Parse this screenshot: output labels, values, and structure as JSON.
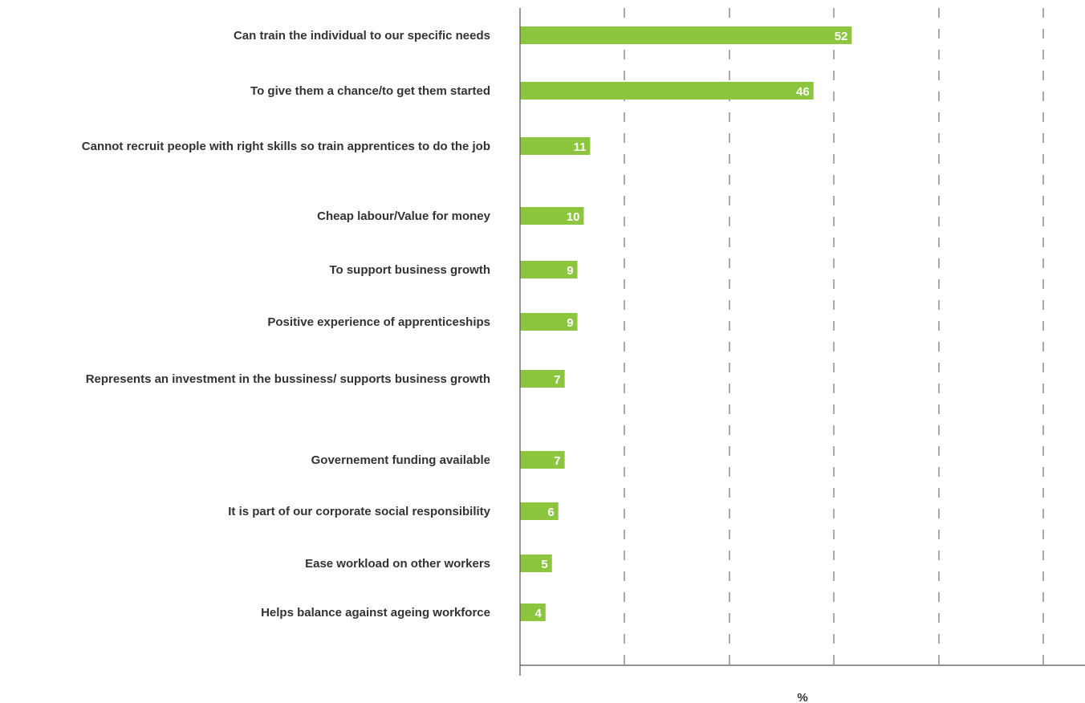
{
  "chart_data": {
    "type": "bar",
    "orientation": "horizontal",
    "categories": [
      "Can train the individual to our specific needs",
      "To give them a chance/to get them started",
      "Cannot recruit people with right skills so train apprentices to do the job",
      "Cheap labour/Value for money",
      "To support business growth",
      "Positive experience of apprenticeships",
      "Represents an investment in the bussiness/  supports business growth",
      "Governement funding available",
      "It is part of our corporate social responsibility",
      "Ease workload on other workers",
      "Helps balance against ageing workforce"
    ],
    "values": [
      52,
      46,
      11,
      10,
      9,
      9,
      7,
      7,
      6,
      5,
      4
    ],
    "data_labels": [
      "52",
      "46",
      "11",
      "10",
      "9",
      "9",
      "7",
      "7",
      "6",
      "5",
      "4"
    ],
    "xlabel": "%",
    "xlim": [
      0,
      88
    ],
    "grid": true,
    "legend": "none",
    "bar_color": "#8cc63f",
    "text_color": "#333333"
  }
}
